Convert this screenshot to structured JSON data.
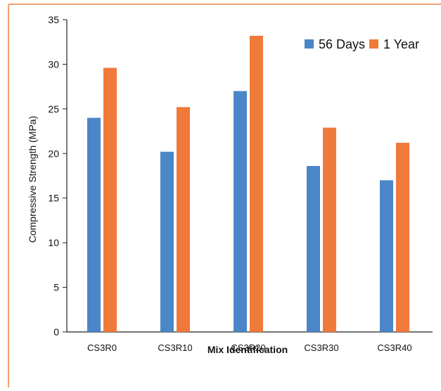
{
  "chart_data": {
    "type": "bar",
    "title": "",
    "xlabel": "Mix Identification",
    "ylabel": "Compressive Strength (MPa)",
    "categories": [
      "CS3R0",
      "CS3R10",
      "CS3R20",
      "CS3R30",
      "CS3R40"
    ],
    "series": [
      {
        "name": "56 Days",
        "values": [
          24.0,
          20.2,
          27.0,
          18.6,
          17.0
        ]
      },
      {
        "name": "1 Year",
        "values": [
          29.6,
          25.2,
          33.2,
          22.9,
          21.2
        ]
      }
    ],
    "ylim": [
      0,
      35
    ],
    "yticks": [
      "0",
      "5",
      "10",
      "15",
      "20",
      "25",
      "30",
      "35"
    ],
    "grid": false,
    "legend_position": "top-right",
    "colors": {
      "series_1": "#4a86c8",
      "series_2": "#f07a3a",
      "frame": "#f0a070",
      "axis": "#222222"
    }
  }
}
